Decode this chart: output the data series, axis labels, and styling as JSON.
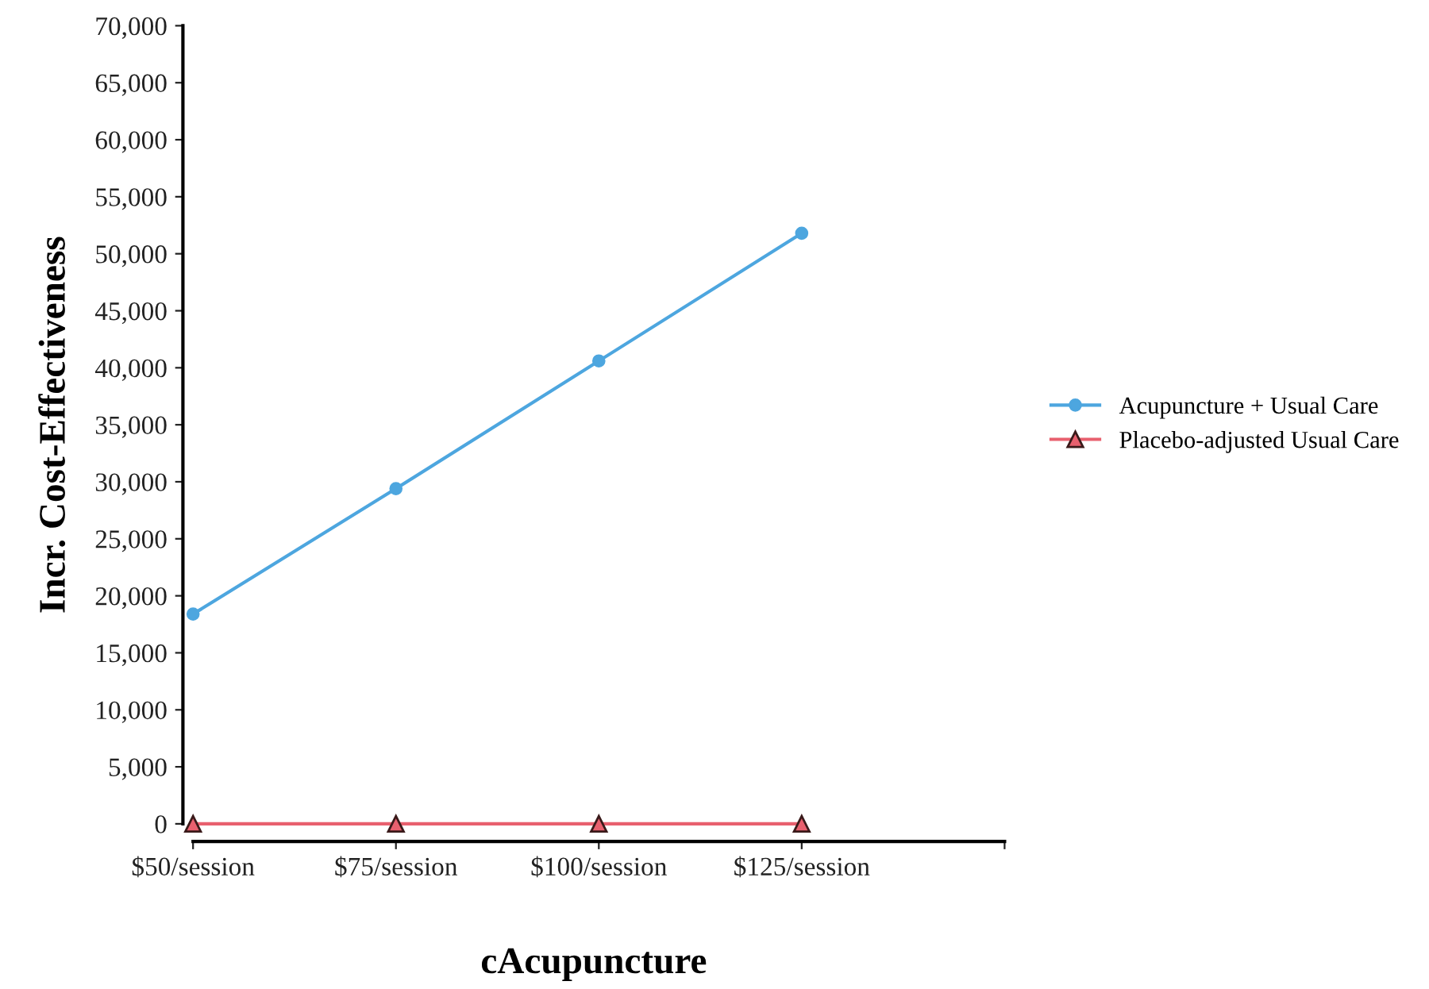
{
  "chart_data": {
    "type": "line",
    "xlabel": "cAcupuncture",
    "ylabel": "Incr. Cost-Effectiveness",
    "categories": [
      "$50/session",
      "$75/session",
      "$100/session",
      "$125/session",
      null
    ],
    "series": [
      {
        "name": "Acupuncture + Usual Care",
        "color": "#4da6df",
        "marker": "circle",
        "values": [
          18400,
          29400,
          40600,
          51800,
          null
        ]
      },
      {
        "name": "Placebo-adjusted Usual Care",
        "color": "#e8606e",
        "marker": "triangle",
        "values": [
          0,
          0,
          0,
          0,
          null
        ]
      }
    ],
    "ylim": [
      0,
      70000
    ],
    "yticks": [
      0,
      {
        "value": 5000,
        "label": "5,000"
      },
      {
        "value": 10000,
        "label": "10,000"
      },
      {
        "value": 15000,
        "label": "15,000"
      },
      {
        "value": 20000,
        "label": "20,000"
      },
      {
        "value": 25000,
        "label": "25,000"
      },
      {
        "value": 30000,
        "label": "30,000"
      },
      {
        "value": 35000,
        "label": "35,000"
      },
      {
        "value": 40000,
        "label": "40,000"
      },
      {
        "value": 45000,
        "label": "45,000"
      },
      {
        "value": 50000,
        "label": "50,000"
      },
      {
        "value": 55000,
        "label": "55,000"
      },
      {
        "value": 60000,
        "label": "60,000"
      },
      {
        "value": 65000,
        "label": "65,000"
      },
      {
        "value": 70000,
        "label": "70,000"
      }
    ],
    "grid": false,
    "legend": "right"
  }
}
